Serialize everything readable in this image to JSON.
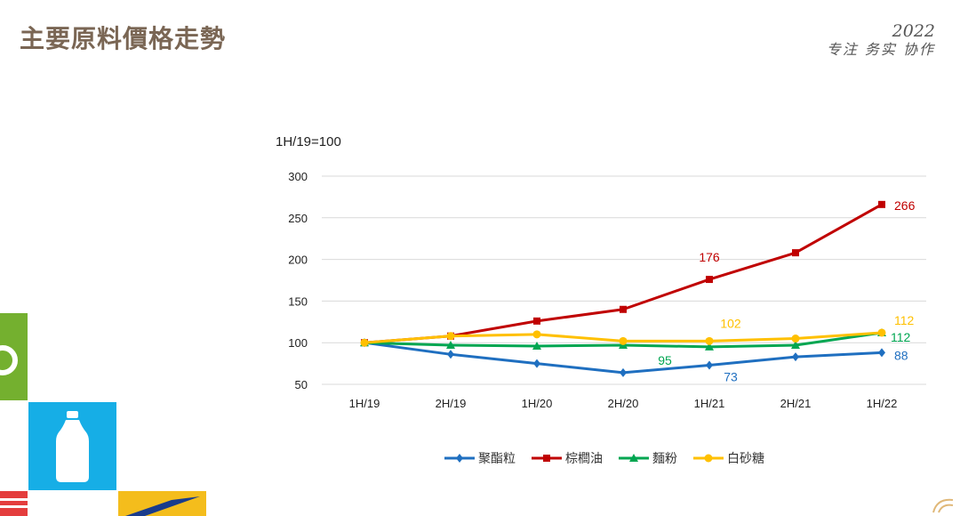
{
  "page": {
    "title": "主要原料價格走勢",
    "brand_year": "2022",
    "brand_slogan": "专注 务实 协作"
  },
  "chart_data": {
    "type": "line",
    "ylabel": "1H/19=100",
    "categories": [
      "1H/19",
      "2H/19",
      "1H/20",
      "2H/20",
      "1H/21",
      "2H/21",
      "1H/22"
    ],
    "yticks": [
      "300",
      "250",
      "200",
      "150",
      "100",
      "50"
    ],
    "ylim": [
      50,
      300
    ],
    "grid": true,
    "legend_position": "bottom",
    "series": [
      {
        "name": "聚酯粒",
        "color": "#1f6fc0",
        "marker": "diamond",
        "values": [
          100,
          86,
          75,
          64,
          73,
          83,
          88
        ]
      },
      {
        "name": "棕櫚油",
        "color": "#c00000",
        "marker": "square",
        "values": [
          100,
          108,
          126,
          140,
          176,
          208,
          266
        ]
      },
      {
        "name": "麵粉",
        "color": "#00a651",
        "marker": "triangle",
        "values": [
          100,
          97,
          96,
          97,
          95,
          97,
          112
        ]
      },
      {
        "name": "白砂糖",
        "color": "#ffc000",
        "marker": "circle",
        "values": [
          100,
          108,
          110,
          102,
          102,
          105,
          112
        ]
      }
    ],
    "annotations": [
      {
        "series": 1,
        "index": 4,
        "text": "176"
      },
      {
        "series": 1,
        "index": 6,
        "text": "266"
      },
      {
        "series": 3,
        "index": 4,
        "text": "102"
      },
      {
        "series": 3,
        "index": 6,
        "text": "112"
      },
      {
        "series": 2,
        "index": 4,
        "text": "95"
      },
      {
        "series": 2,
        "index": 6,
        "text": "112"
      },
      {
        "series": 0,
        "index": 4,
        "text": "73"
      },
      {
        "series": 0,
        "index": 6,
        "text": "88"
      }
    ]
  }
}
